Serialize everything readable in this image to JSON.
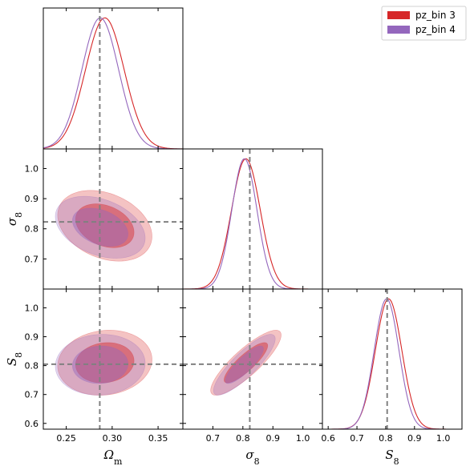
{
  "chart_data": {
    "type": "triangle_corner_plot",
    "parameters": [
      {
        "key": "om",
        "label": "Ω",
        "sub": "m",
        "range": [
          0.225,
          0.377
        ],
        "ticks": [
          0.25,
          0.3,
          0.35
        ],
        "tick_labels": [
          "0.25",
          "0.30",
          "0.35"
        ],
        "truth": 0.2865
      },
      {
        "key": "s8",
        "label": "σ",
        "sub": "8",
        "range": [
          0.6,
          1.065
        ],
        "ticks": [
          0.7,
          0.8,
          0.9,
          1.0
        ],
        "tick_labels": [
          "0.7",
          "0.8",
          "0.9",
          "1.0"
        ],
        "truth": 0.823
      },
      {
        "key": "S8",
        "label": "S",
        "sub": "8",
        "range": [
          0.58,
          1.065
        ],
        "ticks": [
          0.6,
          0.7,
          0.8,
          0.9,
          1.0
        ],
        "tick_labels": [
          "0.6",
          "0.7",
          "0.8",
          "0.9",
          "1.0"
        ],
        "truth": 0.805
      }
    ],
    "series": [
      {
        "name": "pz_bin 3",
        "color": "#d62728",
        "mean": [
          0.292,
          0.81,
          0.81
        ],
        "sd": [
          0.021,
          0.048,
          0.046
        ],
        "corr": {
          "om_s8": -0.3,
          "om_S8": 0.1,
          "s8_S8": 0.85
        }
      },
      {
        "name": "pz_bin 4",
        "color": "#9467bd",
        "mean": [
          0.287,
          0.805,
          0.803
        ],
        "sd": [
          0.02,
          0.042,
          0.043
        ],
        "corr": {
          "om_s8": -0.35,
          "om_S8": 0.05,
          "s8_S8": 0.85
        }
      }
    ],
    "contour_levels": [
      "68%",
      "95%"
    ],
    "legend": {
      "position": "top-right",
      "entries": [
        "pz_bin 3",
        "pz_bin 4"
      ]
    },
    "truth_line_color": "#808080",
    "grid": false
  }
}
